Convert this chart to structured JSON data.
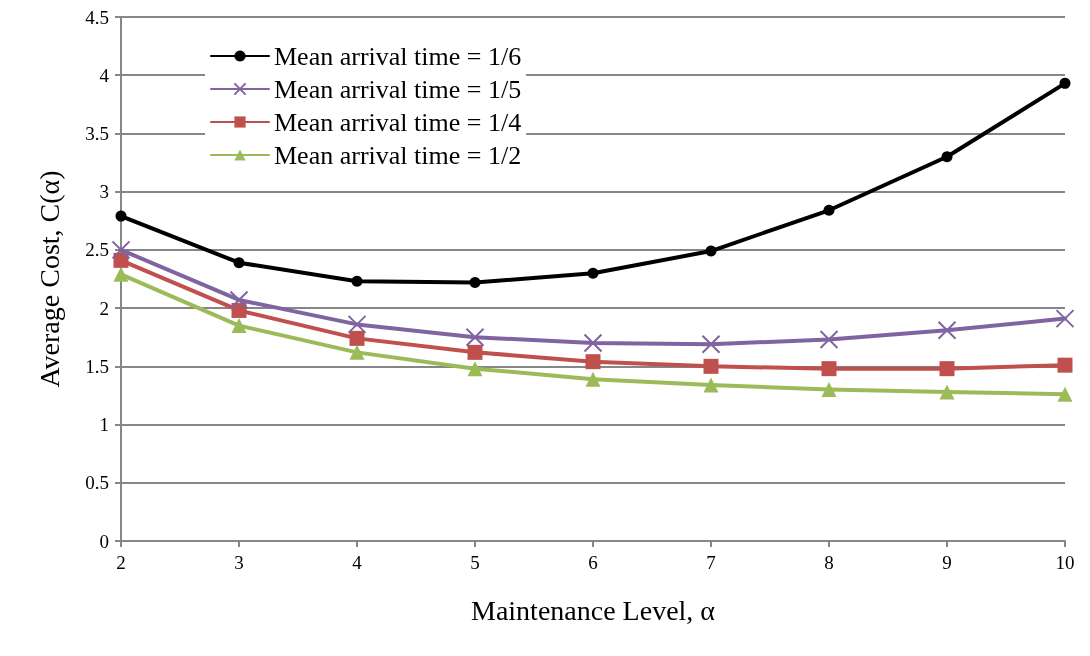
{
  "chart_data": {
    "type": "line",
    "xlabel": "Maintenance Level, α",
    "ylabel": "Average Cost, C(α)",
    "x": [
      2,
      3,
      4,
      5,
      6,
      7,
      8,
      9,
      10
    ],
    "xlim": [
      2,
      10
    ],
    "xticks": [
      2,
      3,
      4,
      5,
      6,
      7,
      8,
      9,
      10
    ],
    "ylim": [
      0,
      4.5
    ],
    "yticks": [
      0,
      0.5,
      1,
      1.5,
      2,
      2.5,
      3,
      3.5,
      4,
      4.5
    ],
    "grid": "y",
    "legend": "top left",
    "line_style": "solid",
    "series": [
      {
        "name": "Mean arrival time = 1/6",
        "color": "#000000",
        "marker": "circle",
        "values": [
          2.79,
          2.39,
          2.23,
          2.22,
          2.3,
          2.49,
          2.84,
          3.3,
          3.93
        ]
      },
      {
        "name": "Mean arrival time = 1/5",
        "color": "#8064a2",
        "marker": "cross",
        "values": [
          2.5,
          2.07,
          1.86,
          1.75,
          1.7,
          1.69,
          1.73,
          1.81,
          1.91
        ]
      },
      {
        "name": "Mean arrival time = 1/4",
        "color": "#c0504d",
        "marker": "square",
        "values": [
          2.41,
          1.98,
          1.74,
          1.62,
          1.54,
          1.5,
          1.48,
          1.48,
          1.51
        ]
      },
      {
        "name": "Mean arrival time = 1/2",
        "color": "#9bbb59",
        "marker": "triangle",
        "values": [
          2.29,
          1.85,
          1.62,
          1.48,
          1.39,
          1.34,
          1.3,
          1.28,
          1.26
        ]
      }
    ]
  }
}
